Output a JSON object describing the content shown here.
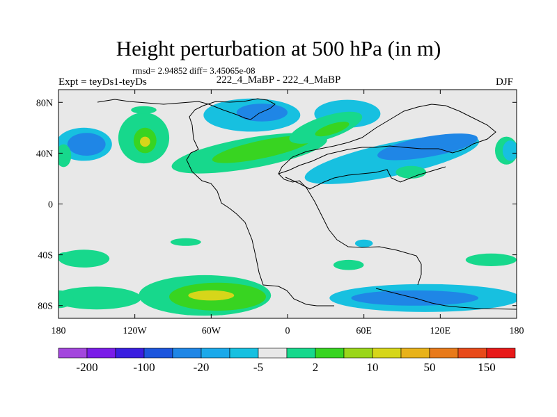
{
  "chart_data": {
    "type": "heatmap",
    "title": "Height perturbation at 500 hPa (in m)",
    "stats": "rmsd= 2.94852 diff= 3.45065e-08",
    "left_label": "Expt = teyDs1-teyDs",
    "subtitle": "222_4_MaBP - 222_4_MaBP",
    "right_label": "DJF",
    "xlim": [
      -180,
      180
    ],
    "ylim": [
      -90,
      90
    ],
    "x_ticks": [
      {
        "value": -180,
        "label": "180"
      },
      {
        "value": -120,
        "label": "120W"
      },
      {
        "value": -60,
        "label": "60W"
      },
      {
        "value": 0,
        "label": "0"
      },
      {
        "value": 60,
        "label": "60E"
      },
      {
        "value": 120,
        "label": "120E"
      },
      {
        "value": 180,
        "label": "180"
      }
    ],
    "y_ticks": [
      {
        "value": 80,
        "label": "80N"
      },
      {
        "value": 40,
        "label": "40N"
      },
      {
        "value": 0,
        "label": "0"
      },
      {
        "value": -40,
        "label": "40S"
      },
      {
        "value": -80,
        "label": "80S"
      }
    ],
    "colorbar": {
      "colors": [
        "#a346dd",
        "#7a1ce8",
        "#3a1ee0",
        "#1c55dd",
        "#1f86e6",
        "#1ba9ea",
        "#17c0e0",
        "#e8e8e8",
        "#17d88c",
        "#38d421",
        "#9ad61a",
        "#d6d61a",
        "#e8b21a",
        "#e87a1a",
        "#e84a1a",
        "#e81a1a"
      ],
      "labels": [
        "-200",
        "-100",
        "-20",
        "-5",
        "2",
        "10",
        "50",
        "150"
      ]
    },
    "field_blobs": [
      {
        "lon": -160,
        "lat": 47,
        "rlon": 22,
        "rlat": 13,
        "level": -5
      },
      {
        "lon": -158,
        "lat": 47,
        "rlon": 15,
        "rlat": 9,
        "level": -20
      },
      {
        "lon": -176,
        "lat": 38,
        "rlon": 6,
        "rlat": 9,
        "level": 2
      },
      {
        "lon": -113,
        "lat": 52,
        "rlon": 20,
        "rlat": 20,
        "level": 2
      },
      {
        "lon": -112,
        "lat": 50,
        "rlon": 9,
        "rlat": 10,
        "level": 10
      },
      {
        "lon": -112,
        "lat": 49,
        "rlon": 4,
        "rlat": 4,
        "level": 50
      },
      {
        "lon": -113,
        "lat": 74,
        "rlon": 10,
        "rlat": 3,
        "level": 2
      },
      {
        "lon": -28,
        "lat": 70,
        "rlon": 38,
        "rlat": 13,
        "level": -5
      },
      {
        "lon": -20,
        "lat": 72,
        "rlon": 20,
        "rlat": 7,
        "level": -20
      },
      {
        "lon": 47,
        "lat": 71,
        "rlon": 26,
        "rlat": 11,
        "level": -5
      },
      {
        "lon": -30,
        "lat": 40,
        "rlon": 62,
        "rlat": 12,
        "level": 2,
        "rot": -10
      },
      {
        "lon": -20,
        "lat": 43,
        "rlon": 40,
        "rlat": 7,
        "level": 10,
        "rot": -12
      },
      {
        "lon": 30,
        "lat": 60,
        "rlon": 30,
        "rlat": 9,
        "level": 2,
        "rot": -18
      },
      {
        "lon": 35,
        "lat": 59,
        "rlon": 14,
        "rlat": 4,
        "level": 10,
        "rot": -18
      },
      {
        "lon": 82,
        "lat": 35,
        "rlon": 70,
        "rlat": 13,
        "level": -5,
        "rot": -12
      },
      {
        "lon": 110,
        "lat": 45,
        "rlon": 40,
        "rlat": 8,
        "level": -20,
        "rot": -10
      },
      {
        "lon": 127,
        "lat": 51,
        "rlon": 10,
        "rlat": 4,
        "level": -20
      },
      {
        "lon": 97,
        "lat": 25,
        "rlon": 12,
        "rlat": 5,
        "level": 2
      },
      {
        "lon": 172,
        "lat": 42,
        "rlon": 9,
        "rlat": 11,
        "level": 2
      },
      {
        "lon": 175,
        "lat": 42,
        "rlon": 6,
        "rlat": 8,
        "level": -5
      },
      {
        "lon": -160,
        "lat": -43,
        "rlon": 20,
        "rlat": 7,
        "level": 2
      },
      {
        "lon": -175,
        "lat": -42,
        "rlon": 6,
        "rlat": 4,
        "level": 2
      },
      {
        "lon": -80,
        "lat": -30,
        "rlon": 12,
        "rlat": 3,
        "level": 2
      },
      {
        "lon": 60,
        "lat": -31,
        "rlon": 7,
        "rlat": 3,
        "level": -5
      },
      {
        "lon": 48,
        "lat": -48,
        "rlon": 12,
        "rlat": 4,
        "level": 2
      },
      {
        "lon": 160,
        "lat": -44,
        "rlon": 20,
        "rlat": 5,
        "level": 2
      },
      {
        "lon": -150,
        "lat": -74,
        "rlon": 35,
        "rlat": 9,
        "level": 2
      },
      {
        "lon": -180,
        "lat": -75,
        "rlon": 12,
        "rlat": 7,
        "level": 2
      },
      {
        "lon": -65,
        "lat": -72,
        "rlon": 52,
        "rlat": 16,
        "level": 2
      },
      {
        "lon": -55,
        "lat": -73,
        "rlon": 38,
        "rlat": 11,
        "level": 10
      },
      {
        "lon": -60,
        "lat": -72,
        "rlon": 18,
        "rlat": 4,
        "level": 50
      },
      {
        "lon": 108,
        "lat": -74,
        "rlon": 75,
        "rlat": 11,
        "level": -5
      },
      {
        "lon": 100,
        "lat": -74,
        "rlon": 50,
        "rlat": 6,
        "level": -20
      }
    ]
  }
}
